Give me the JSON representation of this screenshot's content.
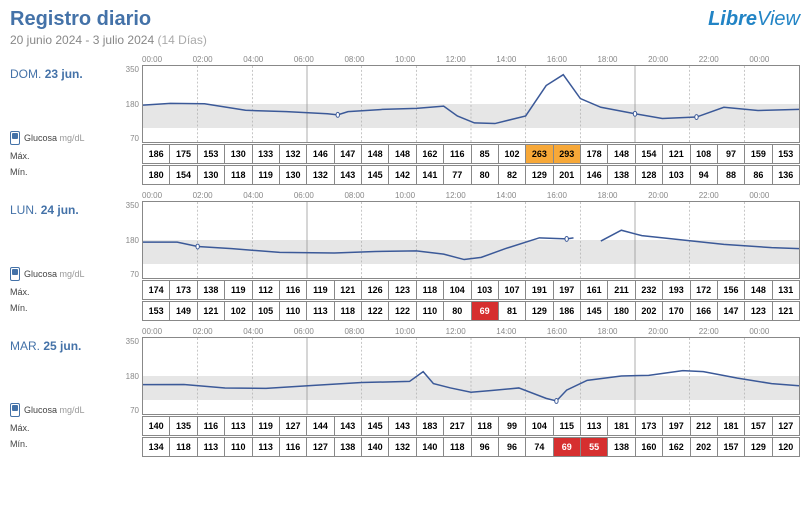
{
  "header": {
    "title": "Registro diario",
    "date_range": "20 junio 2024 - 3 julio 2024",
    "days_label": "(14 Días)",
    "logo_libre": "Libre",
    "logo_view": "View"
  },
  "time_labels": [
    "00:00",
    "02:00",
    "04:00",
    "06:00",
    "08:00",
    "10:00",
    "12:00",
    "14:00",
    "16:00",
    "18:00",
    "20:00",
    "22:00",
    "00:00"
  ],
  "y_ticks": [
    "350",
    "180",
    "70"
  ],
  "glucose_label": "Glucosa",
  "unit_label": "mg/dL",
  "max_label": "Máx.",
  "min_label": "Mín.",
  "chart_style": {
    "line_color": "#3b5998",
    "line_width": 1.5,
    "target_band_color": "#e6e6e6",
    "grid_color": "#aaaaaa",
    "ylim": [
      0,
      350
    ],
    "target_range": [
      70,
      180
    ]
  },
  "days": [
    {
      "dow": "DOM.",
      "date": "23 jun.",
      "line_points": [
        [
          0,
          170
        ],
        [
          40,
          178
        ],
        [
          90,
          176
        ],
        [
          150,
          146
        ],
        [
          210,
          140
        ],
        [
          270,
          130
        ],
        [
          285,
          125
        ],
        [
          300,
          140
        ],
        [
          350,
          150
        ],
        [
          400,
          155
        ],
        [
          440,
          165
        ],
        [
          460,
          120
        ],
        [
          485,
          88
        ],
        [
          515,
          85
        ],
        [
          560,
          120
        ],
        [
          590,
          260
        ],
        [
          615,
          310
        ],
        [
          640,
          200
        ],
        [
          670,
          160
        ],
        [
          720,
          130
        ],
        [
          760,
          108
        ],
        [
          810,
          115
        ],
        [
          850,
          160
        ],
        [
          900,
          145
        ],
        [
          960,
          150
        ]
      ],
      "markers": [
        [
          285,
          125
        ],
        [
          720,
          130
        ],
        [
          810,
          115
        ]
      ],
      "max": [
        {
          "v": "186"
        },
        {
          "v": "175"
        },
        {
          "v": "153"
        },
        {
          "v": "130"
        },
        {
          "v": "133"
        },
        {
          "v": "132"
        },
        {
          "v": "146"
        },
        {
          "v": "147"
        },
        {
          "v": "148"
        },
        {
          "v": "148"
        },
        {
          "v": "162"
        },
        {
          "v": "116"
        },
        {
          "v": "85"
        },
        {
          "v": "102"
        },
        {
          "v": "263",
          "c": "high"
        },
        {
          "v": "293",
          "c": "high"
        },
        {
          "v": "178"
        },
        {
          "v": "148"
        },
        {
          "v": "154"
        },
        {
          "v": "121"
        },
        {
          "v": "108"
        },
        {
          "v": "97"
        },
        {
          "v": "159"
        },
        {
          "v": "153"
        }
      ],
      "min": [
        {
          "v": "180"
        },
        {
          "v": "154"
        },
        {
          "v": "130"
        },
        {
          "v": "118"
        },
        {
          "v": "119"
        },
        {
          "v": "130"
        },
        {
          "v": "132"
        },
        {
          "v": "143"
        },
        {
          "v": "145"
        },
        {
          "v": "142"
        },
        {
          "v": "141"
        },
        {
          "v": "77"
        },
        {
          "v": "80"
        },
        {
          "v": "82"
        },
        {
          "v": "129"
        },
        {
          "v": "201"
        },
        {
          "v": "146"
        },
        {
          "v": "138"
        },
        {
          "v": "128"
        },
        {
          "v": "103"
        },
        {
          "v": "94"
        },
        {
          "v": "88"
        },
        {
          "v": "86"
        },
        {
          "v": "136"
        }
      ]
    },
    {
      "dow": "LUN.",
      "date": "24 jun.",
      "line_points": [
        [
          0,
          165
        ],
        [
          50,
          165
        ],
        [
          80,
          145
        ],
        [
          130,
          135
        ],
        [
          200,
          118
        ],
        [
          280,
          115
        ],
        [
          340,
          122
        ],
        [
          400,
          125
        ],
        [
          440,
          110
        ],
        [
          470,
          85
        ],
        [
          495,
          95
        ],
        [
          530,
          135
        ],
        [
          580,
          185
        ],
        [
          620,
          180
        ],
        [
          630,
          185
        ],
        [
          670,
          170
        ],
        [
          700,
          220
        ],
        [
          730,
          195
        ],
        [
          790,
          175
        ],
        [
          850,
          155
        ],
        [
          920,
          140
        ],
        [
          960,
          135
        ]
      ],
      "markers": [
        [
          80,
          145
        ],
        [
          620,
          180
        ]
      ],
      "gap_x": 660,
      "max": [
        {
          "v": "174"
        },
        {
          "v": "173"
        },
        {
          "v": "138"
        },
        {
          "v": "119"
        },
        {
          "v": "112"
        },
        {
          "v": "116"
        },
        {
          "v": "119"
        },
        {
          "v": "121"
        },
        {
          "v": "126"
        },
        {
          "v": "123"
        },
        {
          "v": "118"
        },
        {
          "v": "104"
        },
        {
          "v": "103"
        },
        {
          "v": "107"
        },
        {
          "v": "191"
        },
        {
          "v": "197"
        },
        {
          "v": "161"
        },
        {
          "v": "211"
        },
        {
          "v": "232"
        },
        {
          "v": "193"
        },
        {
          "v": "172"
        },
        {
          "v": "156"
        },
        {
          "v": "148"
        },
        {
          "v": "131"
        }
      ],
      "min": [
        {
          "v": "153"
        },
        {
          "v": "149"
        },
        {
          "v": "121"
        },
        {
          "v": "102"
        },
        {
          "v": "105"
        },
        {
          "v": "110"
        },
        {
          "v": "113"
        },
        {
          "v": "118"
        },
        {
          "v": "122"
        },
        {
          "v": "122"
        },
        {
          "v": "110"
        },
        {
          "v": "80"
        },
        {
          "v": "69",
          "c": "low"
        },
        {
          "v": "81"
        },
        {
          "v": "129"
        },
        {
          "v": "186"
        },
        {
          "v": "145"
        },
        {
          "v": "180"
        },
        {
          "v": "202"
        },
        {
          "v": "170"
        },
        {
          "v": "166"
        },
        {
          "v": "147"
        },
        {
          "v": "123"
        },
        {
          "v": "121"
        }
      ]
    },
    {
      "dow": "MAR.",
      "date": "25 jun.",
      "line_points": [
        [
          0,
          135
        ],
        [
          60,
          136
        ],
        [
          120,
          120
        ],
        [
          180,
          118
        ],
        [
          250,
          132
        ],
        [
          320,
          145
        ],
        [
          390,
          150
        ],
        [
          410,
          195
        ],
        [
          425,
          140
        ],
        [
          450,
          120
        ],
        [
          480,
          100
        ],
        [
          510,
          108
        ],
        [
          550,
          120
        ],
        [
          590,
          72
        ],
        [
          605,
          60
        ],
        [
          620,
          110
        ],
        [
          650,
          155
        ],
        [
          700,
          175
        ],
        [
          740,
          178
        ],
        [
          790,
          200
        ],
        [
          820,
          195
        ],
        [
          870,
          165
        ],
        [
          920,
          140
        ],
        [
          960,
          130
        ]
      ],
      "markers": [
        [
          605,
          60
        ]
      ],
      "max": [
        {
          "v": "140"
        },
        {
          "v": "135"
        },
        {
          "v": "116"
        },
        {
          "v": "113"
        },
        {
          "v": "119"
        },
        {
          "v": "127"
        },
        {
          "v": "144"
        },
        {
          "v": "143"
        },
        {
          "v": "145"
        },
        {
          "v": "143"
        },
        {
          "v": "183"
        },
        {
          "v": "217"
        },
        {
          "v": "118"
        },
        {
          "v": "99"
        },
        {
          "v": "104"
        },
        {
          "v": "115"
        },
        {
          "v": "113"
        },
        {
          "v": "181"
        },
        {
          "v": "173"
        },
        {
          "v": "197"
        },
        {
          "v": "212"
        },
        {
          "v": "181"
        },
        {
          "v": "157"
        },
        {
          "v": "127"
        }
      ],
      "min": [
        {
          "v": "134"
        },
        {
          "v": "118"
        },
        {
          "v": "113"
        },
        {
          "v": "110"
        },
        {
          "v": "113"
        },
        {
          "v": "116"
        },
        {
          "v": "127"
        },
        {
          "v": "138"
        },
        {
          "v": "140"
        },
        {
          "v": "132"
        },
        {
          "v": "140"
        },
        {
          "v": "118"
        },
        {
          "v": "96"
        },
        {
          "v": "96"
        },
        {
          "v": "74"
        },
        {
          "v": "69",
          "c": "low"
        },
        {
          "v": "55",
          "c": "low"
        },
        {
          "v": "138"
        },
        {
          "v": "160"
        },
        {
          "v": "162"
        },
        {
          "v": "202"
        },
        {
          "v": "157"
        },
        {
          "v": "129"
        },
        {
          "v": "120"
        }
      ]
    }
  ]
}
